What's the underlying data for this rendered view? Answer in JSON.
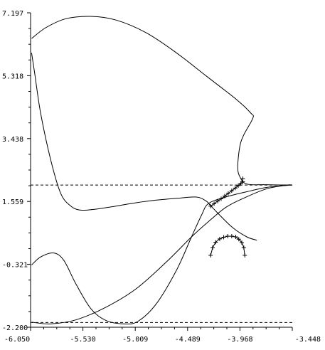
{
  "chart_data": {
    "type": "line",
    "title": "",
    "xlabel": "",
    "ylabel": "",
    "xlim": [
      -6.05,
      -3.448
    ],
    "ylim": [
      -2.2,
      7.197
    ],
    "xticks": [
      "-6.050",
      "-5.530",
      "-5.009",
      "-4.489",
      "-3.968",
      "-3.448"
    ],
    "yticks": [
      "-2.200",
      "-0.321",
      "1.559",
      "3.438",
      "5.318",
      "7.197"
    ],
    "grid": false,
    "legend": "none",
    "dashed_lines": [
      {
        "y": 2.05
      },
      {
        "y": -2.06
      }
    ],
    "series": [
      {
        "style": "solid",
        "points": [
          [
            -6.04,
            6.43
          ],
          [
            -5.9,
            6.75
          ],
          [
            -5.7,
            7.02
          ],
          [
            -5.45,
            7.09
          ],
          [
            -5.2,
            6.98
          ],
          [
            -4.9,
            6.6
          ],
          [
            -4.6,
            6.0
          ],
          [
            -4.3,
            5.3
          ],
          [
            -4.0,
            4.6
          ],
          [
            -3.86,
            4.2
          ],
          [
            -3.84,
            4.05
          ],
          [
            -3.93,
            3.55
          ],
          [
            -3.97,
            3.2
          ],
          [
            -3.99,
            2.6
          ],
          [
            -3.97,
            2.3
          ],
          [
            -3.9,
            2.08
          ],
          [
            -3.7,
            2.06
          ],
          [
            -3.5,
            2.05
          ],
          [
            -3.448,
            2.05
          ]
        ]
      },
      {
        "style": "solid",
        "points": [
          [
            -6.04,
            6.0
          ],
          [
            -6.01,
            5.4
          ],
          [
            -5.95,
            4.2
          ],
          [
            -5.85,
            2.8
          ],
          [
            -5.75,
            1.8
          ],
          [
            -5.65,
            1.42
          ],
          [
            -5.55,
            1.3
          ],
          [
            -5.4,
            1.33
          ],
          [
            -5.2,
            1.42
          ],
          [
            -5.0,
            1.52
          ],
          [
            -4.8,
            1.6
          ],
          [
            -4.6,
            1.65
          ],
          [
            -4.4,
            1.69
          ],
          [
            -4.3,
            1.56
          ],
          [
            -4.25,
            1.4
          ],
          [
            -4.05,
            0.8
          ],
          [
            -3.9,
            0.5
          ],
          [
            -3.8,
            0.4
          ]
        ]
      },
      {
        "style": "solid",
        "points": [
          [
            -6.04,
            -0.34
          ],
          [
            -5.95,
            -0.1
          ],
          [
            -5.82,
            0.02
          ],
          [
            -5.72,
            -0.2
          ],
          [
            -5.6,
            -0.9
          ],
          [
            -5.45,
            -1.65
          ],
          [
            -5.3,
            -2.0
          ],
          [
            -5.12,
            -2.1
          ],
          [
            -4.98,
            -2.02
          ],
          [
            -4.8,
            -1.5
          ],
          [
            -4.6,
            -0.5
          ],
          [
            -4.45,
            0.5
          ],
          [
            -4.35,
            1.15
          ],
          [
            -4.28,
            1.5
          ],
          [
            -4.1,
            1.7
          ],
          [
            -3.9,
            1.85
          ],
          [
            -3.7,
            1.98
          ],
          [
            -3.5,
            2.04
          ],
          [
            -3.448,
            2.05
          ]
        ]
      },
      {
        "style": "solid",
        "points": [
          [
            -6.04,
            -2.05
          ],
          [
            -5.85,
            -2.1
          ],
          [
            -5.6,
            -1.98
          ],
          [
            -5.3,
            -1.6
          ],
          [
            -5.0,
            -1.05
          ],
          [
            -4.7,
            -0.25
          ],
          [
            -4.45,
            0.5
          ],
          [
            -4.28,
            0.96
          ],
          [
            -4.1,
            1.4
          ],
          [
            -3.9,
            1.7
          ],
          [
            -3.7,
            1.94
          ],
          [
            -3.5,
            2.05
          ],
          [
            -3.448,
            2.05
          ]
        ]
      },
      {
        "style": "crosses",
        "points": [
          [
            -4.26,
            1.42
          ],
          [
            -4.225,
            1.49
          ],
          [
            -4.19,
            1.57
          ],
          [
            -4.155,
            1.64
          ],
          [
            -4.12,
            1.72
          ],
          [
            -4.085,
            1.8
          ],
          [
            -4.05,
            1.88
          ],
          [
            -4.015,
            1.96
          ],
          [
            -3.985,
            2.03
          ],
          [
            -3.96,
            2.1
          ],
          [
            -3.94,
            2.15
          ],
          [
            -3.94,
            2.24
          ]
        ]
      },
      {
        "style": "crosses",
        "points": [
          [
            -4.26,
            -0.05
          ],
          [
            -4.24,
            0.18
          ],
          [
            -4.21,
            0.34
          ],
          [
            -4.17,
            0.44
          ],
          [
            -4.13,
            0.49
          ],
          [
            -4.09,
            0.52
          ],
          [
            -4.05,
            0.52
          ],
          [
            -4.01,
            0.5
          ],
          [
            -3.98,
            0.43
          ],
          [
            -3.95,
            0.33
          ],
          [
            -3.93,
            0.18
          ],
          [
            -3.92,
            -0.05
          ]
        ]
      }
    ]
  }
}
